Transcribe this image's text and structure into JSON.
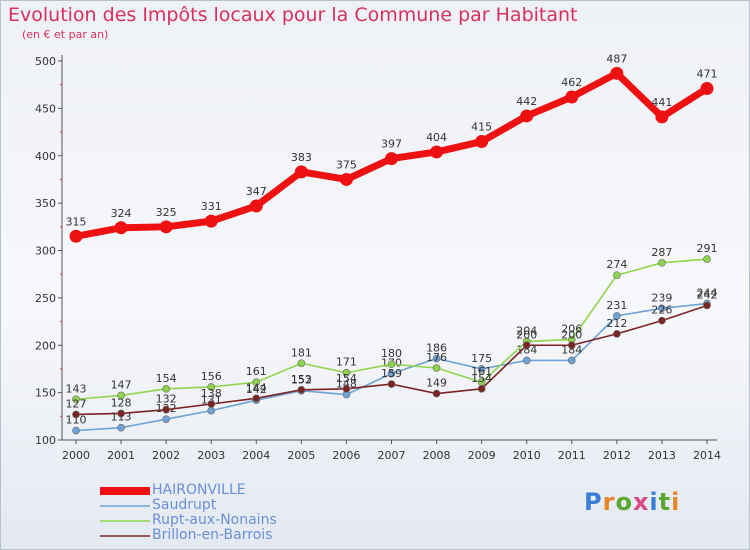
{
  "header": {
    "title": "Evolution des Impôts locaux pour la Commune par Habitant",
    "subtitle": "(en € et par an)"
  },
  "logo": {
    "text": "Proxiti",
    "colors": [
      "#3a7fd5",
      "#e8862a",
      "#5aa832",
      "#d84a8a",
      "#3a7fd5",
      "#5aa832",
      "#e8862a"
    ]
  },
  "chart_data": {
    "type": "line",
    "x": [
      2000,
      2001,
      2002,
      2003,
      2004,
      2005,
      2006,
      2007,
      2008,
      2009,
      2010,
      2011,
      2012,
      2013,
      2014
    ],
    "ylim": [
      100,
      500
    ],
    "yticks": [
      100,
      150,
      200,
      250,
      300,
      350,
      400,
      450,
      500
    ],
    "grid": false,
    "legend_position": "bottom-left",
    "series": [
      {
        "name": "HAIRONVILLE",
        "color": "#ee1111",
        "values": [
          315,
          324,
          325,
          331,
          347,
          383,
          375,
          397,
          404,
          415,
          442,
          462,
          487,
          441,
          471
        ]
      },
      {
        "name": "Saudrupt",
        "color": "#6ea3d8",
        "values": [
          110,
          113,
          122,
          131,
          142,
          152,
          148,
          170,
          186,
          175,
          184,
          184,
          231,
          239,
          244
        ]
      },
      {
        "name": "Rupt-aux-Nonains",
        "color": "#8fd44e",
        "values": [
          143,
          147,
          154,
          156,
          161,
          181,
          171,
          180,
          176,
          161,
          204,
          206,
          274,
          287,
          291
        ]
      },
      {
        "name": "Brillon-en-Barrois",
        "color": "#7a2424",
        "values": [
          127,
          128,
          132,
          138,
          144,
          153,
          154,
          159,
          149,
          154,
          200,
          200,
          212,
          226,
          242
        ]
      }
    ]
  }
}
